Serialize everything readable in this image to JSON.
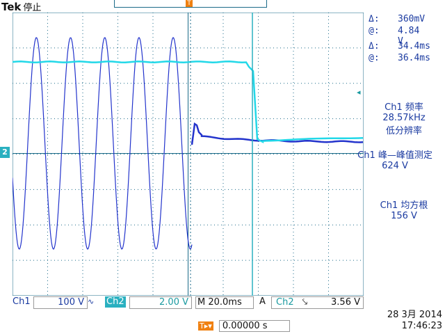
{
  "header": {
    "brand": "Tek",
    "state": "停止"
  },
  "markers": {
    "trigger_pos": "T",
    "ch2": "2",
    "trig_top": "T"
  },
  "cursor": {
    "delta_v_label": "Δ:",
    "delta_v": "360mV",
    "at_v_label": "@:",
    "at_v": "4.84 V",
    "delta_t_label": "Δ:",
    "delta_t": "34.4ms",
    "at_t_label": "@:",
    "at_t": "36.4ms"
  },
  "measurements": [
    {
      "name": "Ch1 频率",
      "value": "28.57kHz",
      "note": "低分辨率"
    },
    {
      "name": "Ch1 峰—峰值测定",
      "value": "624 V"
    },
    {
      "name": "Ch1 均方根",
      "value": "156 V"
    }
  ],
  "bottombar": {
    "ch1_label": "Ch1",
    "ch1_scale": "100 V",
    "ch1_coupling": "∿",
    "ch2_label": "Ch2",
    "ch2_scale": "2.00 V",
    "timebase": "M 20.0ms",
    "trig_source_label": "A",
    "trig_channel": "Ch2",
    "trig_slope": "⤥",
    "trig_level": "3.56 V"
  },
  "datetime": {
    "date": "28 3月  2014",
    "time": "17:46:23"
  },
  "position": {
    "icon": "T▸▾",
    "value": "0.00000 s"
  },
  "colors": {
    "ch1": "#2233cc",
    "ch2": "#22d8e8",
    "grid": "#1a6a88",
    "accent": "#f08010"
  }
}
